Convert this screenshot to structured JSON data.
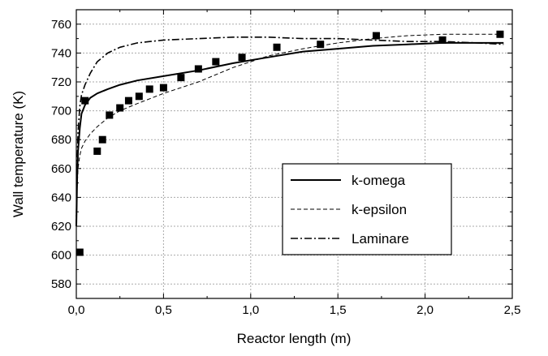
{
  "chart_data": {
    "type": "line",
    "title": "",
    "xlabel": "Reactor length (m)",
    "ylabel": "Wall temperature (K)",
    "xlim": [
      0,
      2.5
    ],
    "ylim": [
      570,
      770
    ],
    "x_ticks": [
      0.0,
      0.5,
      1.0,
      1.5,
      2.0,
      2.5
    ],
    "x_tick_labels": [
      "0,0",
      "0,5",
      "1,0",
      "1,5",
      "2,0",
      "2,5"
    ],
    "y_ticks": [
      580,
      600,
      620,
      640,
      660,
      680,
      700,
      720,
      740,
      760
    ],
    "y_tick_labels": [
      "580",
      "600",
      "620",
      "640",
      "660",
      "680",
      "700",
      "720",
      "740",
      "760"
    ],
    "grid": true,
    "legend_position": "right",
    "series": [
      {
        "name": "k-omega",
        "style": "solid",
        "x": [
          0,
          0.005,
          0.01,
          0.02,
          0.03,
          0.05,
          0.08,
          0.12,
          0.18,
          0.25,
          0.35,
          0.5,
          0.7,
          0.9,
          1.1,
          1.3,
          1.5,
          1.7,
          1.9,
          2.1,
          2.3,
          2.45
        ],
        "y": [
          620,
          655,
          672,
          688,
          698,
          704,
          709,
          712,
          715,
          718,
          721,
          724,
          728,
          733,
          737,
          741,
          743,
          745,
          746,
          747,
          747,
          747
        ]
      },
      {
        "name": "k-epsilon",
        "style": "dashed",
        "x": [
          0,
          0.005,
          0.01,
          0.02,
          0.03,
          0.05,
          0.08,
          0.12,
          0.18,
          0.25,
          0.35,
          0.5,
          0.7,
          0.9,
          1.1,
          1.3,
          1.5,
          1.7,
          1.9,
          2.1,
          2.3,
          2.45
        ],
        "y": [
          620,
          648,
          660,
          669,
          674,
          679,
          684,
          689,
          695,
          700,
          705,
          712,
          720,
          730,
          738,
          743,
          747,
          750,
          752,
          753,
          753,
          753
        ]
      },
      {
        "name": "Laminare",
        "style": "dashdot",
        "x": [
          0,
          0.005,
          0.01,
          0.02,
          0.03,
          0.05,
          0.08,
          0.12,
          0.18,
          0.25,
          0.35,
          0.5,
          0.7,
          0.9,
          1.1,
          1.3,
          1.5,
          1.7,
          1.9,
          2.1,
          2.3,
          2.45
        ],
        "y": [
          620,
          665,
          685,
          703,
          711,
          718,
          726,
          734,
          740,
          744,
          747,
          749,
          750,
          751,
          751,
          750,
          750,
          749,
          748,
          748,
          747,
          746
        ]
      },
      {
        "name": "",
        "style": "markers",
        "marker": "square",
        "x": [
          0.02,
          0.05,
          0.12,
          0.15,
          0.19,
          0.25,
          0.3,
          0.36,
          0.42,
          0.5,
          0.6,
          0.7,
          0.8,
          0.95,
          1.15,
          1.4,
          1.72,
          2.1,
          2.43
        ],
        "y": [
          602,
          707,
          672,
          680,
          697,
          702,
          707,
          710,
          715,
          716,
          723,
          729,
          734,
          737,
          744,
          746,
          752,
          749,
          753
        ]
      }
    ],
    "colors": {
      "lines": "#000000",
      "grid": "#aaaaaa",
      "background": "#ffffff"
    }
  }
}
